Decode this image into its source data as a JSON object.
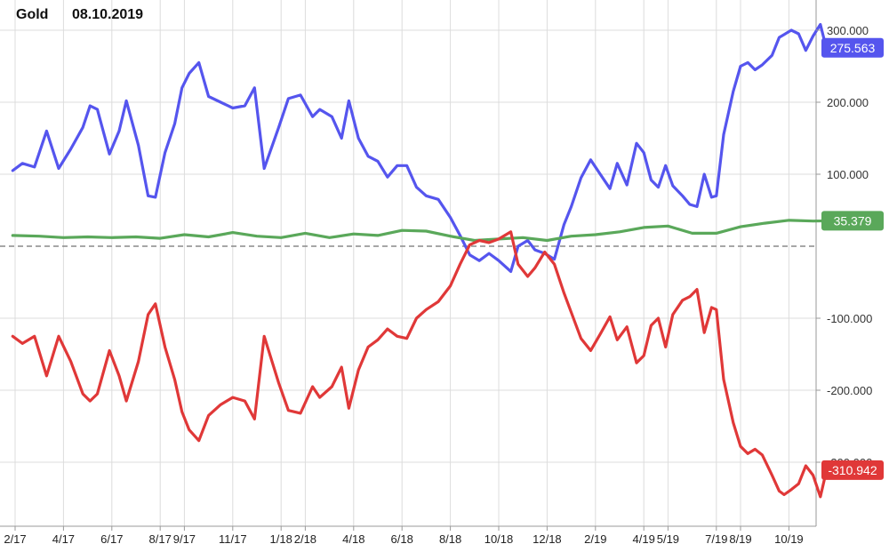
{
  "chart_data": {
    "type": "line",
    "title": "Gold",
    "date": "08.10.2019",
    "ylim": [
      -360,
      330
    ],
    "grid": true,
    "zero_line": true,
    "x_ticks": [
      {
        "label": "2/17",
        "x": 0
      },
      {
        "label": "4/17",
        "x": 2
      },
      {
        "label": "6/17",
        "x": 4
      },
      {
        "label": "8/17",
        "x": 6
      },
      {
        "label": "9/17",
        "x": 7
      },
      {
        "label": "11/17",
        "x": 9
      },
      {
        "label": "1/18",
        "x": 11
      },
      {
        "label": "2/18",
        "x": 12
      },
      {
        "label": "4/18",
        "x": 14
      },
      {
        "label": "6/18",
        "x": 16
      },
      {
        "label": "8/18",
        "x": 18
      },
      {
        "label": "10/18",
        "x": 20
      },
      {
        "label": "12/18",
        "x": 22
      },
      {
        "label": "2/19",
        "x": 24
      },
      {
        "label": "4/19",
        "x": 26
      },
      {
        "label": "5/19",
        "x": 27
      },
      {
        "label": "7/19",
        "x": 29
      },
      {
        "label": "8/19",
        "x": 30
      },
      {
        "label": "10/19",
        "x": 32
      }
    ],
    "y_ticks": [
      {
        "label": "300.000",
        "value": 300
      },
      {
        "label": "200.000",
        "value": 200
      },
      {
        "label": "100.000",
        "value": 100
      },
      {
        "label": "-100.000",
        "value": -100
      },
      {
        "label": "-200.000",
        "value": -200
      },
      {
        "label": "-300.000",
        "value": -300
      }
    ],
    "series": [
      {
        "color": "#5555ee",
        "last_label": "275.563",
        "last_value": 275.563,
        "points": [
          [
            -0.1,
            105
          ],
          [
            0.3,
            115
          ],
          [
            0.8,
            110
          ],
          [
            1.3,
            160
          ],
          [
            1.8,
            108
          ],
          [
            2.3,
            135
          ],
          [
            2.8,
            165
          ],
          [
            3.1,
            195
          ],
          [
            3.4,
            190
          ],
          [
            3.9,
            128
          ],
          [
            4.3,
            160
          ],
          [
            4.6,
            202
          ],
          [
            5.1,
            140
          ],
          [
            5.5,
            70
          ],
          [
            5.8,
            68
          ],
          [
            6.2,
            130
          ],
          [
            6.6,
            170
          ],
          [
            6.9,
            220
          ],
          [
            7.2,
            240
          ],
          [
            7.6,
            255
          ],
          [
            8.0,
            208
          ],
          [
            8.5,
            200
          ],
          [
            9.0,
            192
          ],
          [
            9.5,
            195
          ],
          [
            9.9,
            220
          ],
          [
            10.3,
            108
          ],
          [
            10.9,
            165
          ],
          [
            11.3,
            205
          ],
          [
            11.8,
            210
          ],
          [
            12.3,
            180
          ],
          [
            12.6,
            190
          ],
          [
            13.1,
            180
          ],
          [
            13.5,
            150
          ],
          [
            13.8,
            202
          ],
          [
            14.2,
            150
          ],
          [
            14.6,
            125
          ],
          [
            15.0,
            118
          ],
          [
            15.4,
            96
          ],
          [
            15.8,
            112
          ],
          [
            16.2,
            112
          ],
          [
            16.6,
            82
          ],
          [
            17.0,
            70
          ],
          [
            17.5,
            65
          ],
          [
            18.0,
            40
          ],
          [
            18.4,
            15
          ],
          [
            18.8,
            -12
          ],
          [
            19.2,
            -20
          ],
          [
            19.6,
            -10
          ],
          [
            20.0,
            -20
          ],
          [
            20.5,
            -35
          ],
          [
            20.8,
            0
          ],
          [
            21.2,
            8
          ],
          [
            21.5,
            -5
          ],
          [
            21.9,
            -10
          ],
          [
            22.3,
            -18
          ],
          [
            22.7,
            30
          ],
          [
            23.0,
            55
          ],
          [
            23.4,
            95
          ],
          [
            23.8,
            120
          ],
          [
            24.2,
            100
          ],
          [
            24.6,
            80
          ],
          [
            24.9,
            115
          ],
          [
            25.3,
            85
          ],
          [
            25.7,
            143
          ],
          [
            26.0,
            130
          ],
          [
            26.3,
            92
          ],
          [
            26.6,
            82
          ],
          [
            26.9,
            112
          ],
          [
            27.2,
            84
          ],
          [
            27.6,
            70
          ],
          [
            27.9,
            58
          ],
          [
            28.2,
            55
          ],
          [
            28.5,
            100
          ],
          [
            28.8,
            68
          ],
          [
            29.0,
            70
          ],
          [
            29.3,
            155
          ],
          [
            29.7,
            215
          ],
          [
            30.0,
            250
          ],
          [
            30.3,
            255
          ],
          [
            30.6,
            245
          ],
          [
            30.9,
            252
          ],
          [
            31.3,
            265
          ],
          [
            31.6,
            290
          ],
          [
            31.8,
            294
          ],
          [
            32.1,
            300
          ],
          [
            32.4,
            295
          ],
          [
            32.7,
            272
          ],
          [
            33.0,
            292
          ],
          [
            33.3,
            308
          ],
          [
            33.6,
            268
          ],
          [
            34.0,
            275.563
          ]
        ]
      },
      {
        "color": "#5aa85a",
        "last_label": "35.379",
        "last_value": 35.379,
        "points": [
          [
            -0.1,
            15
          ],
          [
            1,
            14
          ],
          [
            2,
            12
          ],
          [
            3,
            13
          ],
          [
            4,
            12
          ],
          [
            5,
            13
          ],
          [
            6,
            11
          ],
          [
            7,
            16
          ],
          [
            8,
            13
          ],
          [
            9,
            19
          ],
          [
            10,
            14
          ],
          [
            11,
            12
          ],
          [
            12,
            18
          ],
          [
            13,
            12
          ],
          [
            14,
            17
          ],
          [
            15,
            15
          ],
          [
            16,
            22
          ],
          [
            17,
            21
          ],
          [
            18,
            14
          ],
          [
            19,
            8
          ],
          [
            20,
            10
          ],
          [
            21,
            12
          ],
          [
            22,
            8
          ],
          [
            23,
            14
          ],
          [
            24,
            16
          ],
          [
            25,
            20
          ],
          [
            26,
            26
          ],
          [
            27,
            28
          ],
          [
            28,
            18
          ],
          [
            29,
            18
          ],
          [
            30,
            27
          ],
          [
            31,
            32
          ],
          [
            32,
            36
          ],
          [
            33,
            35
          ],
          [
            34,
            35.379
          ]
        ]
      },
      {
        "color": "#e03838",
        "last_label": "-310.942",
        "last_value": -310.942,
        "points": [
          [
            -0.1,
            -125
          ],
          [
            0.3,
            -135
          ],
          [
            0.8,
            -125
          ],
          [
            1.3,
            -180
          ],
          [
            1.8,
            -125
          ],
          [
            2.3,
            -160
          ],
          [
            2.8,
            -205
          ],
          [
            3.1,
            -215
          ],
          [
            3.4,
            -205
          ],
          [
            3.9,
            -145
          ],
          [
            4.3,
            -180
          ],
          [
            4.6,
            -215
          ],
          [
            5.1,
            -160
          ],
          [
            5.5,
            -95
          ],
          [
            5.8,
            -80
          ],
          [
            6.2,
            -140
          ],
          [
            6.6,
            -185
          ],
          [
            6.9,
            -230
          ],
          [
            7.2,
            -255
          ],
          [
            7.6,
            -270
          ],
          [
            8.0,
            -235
          ],
          [
            8.5,
            -220
          ],
          [
            9.0,
            -210
          ],
          [
            9.5,
            -215
          ],
          [
            9.9,
            -240
          ],
          [
            10.3,
            -125
          ],
          [
            10.9,
            -190
          ],
          [
            11.3,
            -228
          ],
          [
            11.8,
            -232
          ],
          [
            12.3,
            -195
          ],
          [
            12.6,
            -210
          ],
          [
            13.1,
            -195
          ],
          [
            13.5,
            -168
          ],
          [
            13.8,
            -225
          ],
          [
            14.2,
            -172
          ],
          [
            14.6,
            -140
          ],
          [
            15.0,
            -130
          ],
          [
            15.4,
            -115
          ],
          [
            15.8,
            -125
          ],
          [
            16.2,
            -128
          ],
          [
            16.6,
            -100
          ],
          [
            17.0,
            -88
          ],
          [
            17.5,
            -77
          ],
          [
            18.0,
            -55
          ],
          [
            18.4,
            -25
          ],
          [
            18.8,
            2
          ],
          [
            19.2,
            8
          ],
          [
            19.6,
            5
          ],
          [
            20.0,
            10
          ],
          [
            20.5,
            20
          ],
          [
            20.8,
            -25
          ],
          [
            21.2,
            -42
          ],
          [
            21.5,
            -30
          ],
          [
            21.9,
            -8
          ],
          [
            22.3,
            -25
          ],
          [
            22.7,
            -65
          ],
          [
            23.0,
            -92
          ],
          [
            23.4,
            -128
          ],
          [
            23.8,
            -145
          ],
          [
            24.2,
            -122
          ],
          [
            24.6,
            -98
          ],
          [
            24.9,
            -130
          ],
          [
            25.3,
            -112
          ],
          [
            25.7,
            -162
          ],
          [
            26.0,
            -152
          ],
          [
            26.3,
            -110
          ],
          [
            26.6,
            -100
          ],
          [
            26.9,
            -140
          ],
          [
            27.2,
            -95
          ],
          [
            27.6,
            -75
          ],
          [
            27.9,
            -70
          ],
          [
            28.2,
            -60
          ],
          [
            28.5,
            -120
          ],
          [
            28.8,
            -85
          ],
          [
            29.0,
            -88
          ],
          [
            29.3,
            -185
          ],
          [
            29.7,
            -245
          ],
          [
            30.0,
            -278
          ],
          [
            30.3,
            -288
          ],
          [
            30.6,
            -282
          ],
          [
            30.9,
            -290
          ],
          [
            31.3,
            -318
          ],
          [
            31.6,
            -340
          ],
          [
            31.8,
            -345
          ],
          [
            32.1,
            -338
          ],
          [
            32.4,
            -330
          ],
          [
            32.7,
            -305
          ],
          [
            33.0,
            -318
          ],
          [
            33.3,
            -348
          ],
          [
            33.6,
            -305
          ],
          [
            34.0,
            -310.942
          ]
        ]
      }
    ]
  }
}
